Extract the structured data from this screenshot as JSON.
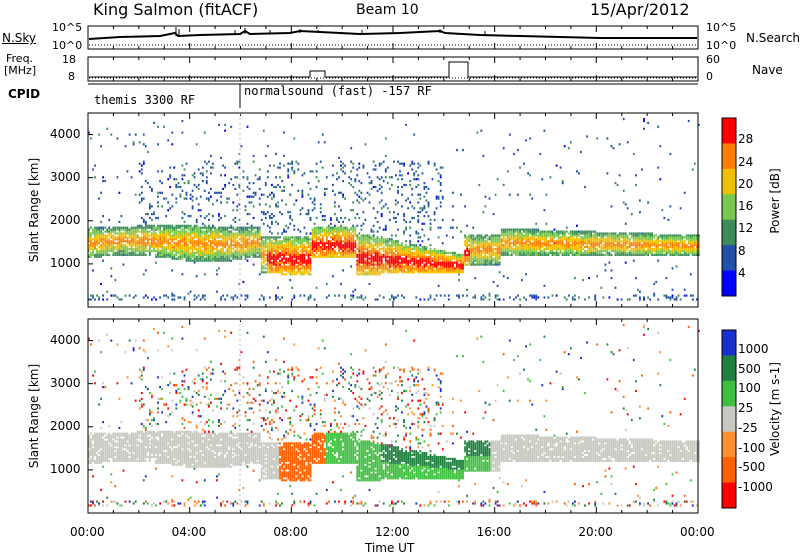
{
  "header": {
    "station": "King Salmon (fitACF)",
    "beam": "Beam 10",
    "date": "15/Apr/2012"
  },
  "noise_panel": {
    "left_label": "N.Sky",
    "right_label": "N.Search",
    "left_ticks": [
      "10^5",
      "10^0"
    ],
    "right_ticks": [
      "10^5",
      "10^0"
    ]
  },
  "freq_panel": {
    "label_line1": "Freq.",
    "label_line2": "[MHz]",
    "left_ticks": [
      "18",
      "8"
    ],
    "right_label": "Nave",
    "right_ticks": [
      "60",
      "0"
    ]
  },
  "cpid_panel": {
    "label": "CPID",
    "programs": [
      "themis 3300 RF",
      "normalsound (fast) -157 RF"
    ]
  },
  "colors": {
    "power": [
      "#0000ff",
      "#2050a8",
      "#3c8c5a",
      "#78c850",
      "#f0c000",
      "#ff8000",
      "#ff0000"
    ],
    "velocity": [
      "#ff0000",
      "#ff6000",
      "#ff9030",
      "#c8c8c0",
      "#40c040",
      "#208040",
      "#1830d0"
    ]
  },
  "chart_data": [
    {
      "type": "heatmap",
      "name": "Power",
      "ylabel": "Slant Range [km]",
      "yticks": [
        "4000",
        "3000",
        "2000",
        "1000"
      ],
      "ylim": [
        0,
        4500
      ],
      "xlim": [
        "00:00",
        "24:00"
      ],
      "colorbar_label": "Power [dB]",
      "colorbar_ticks": [
        "28",
        "24",
        "20",
        "16",
        "12",
        "8",
        "4"
      ]
    },
    {
      "type": "heatmap",
      "name": "Velocity",
      "ylabel": "Slant Range [km]",
      "yticks": [
        "4000",
        "3000",
        "2000",
        "1000"
      ],
      "ylim": [
        0,
        4500
      ],
      "xlabel": "Time UT",
      "xticks": [
        "00:00",
        "04:00",
        "08:00",
        "12:00",
        "16:00",
        "20:00",
        "00:00"
      ],
      "colorbar_label": "Velocity [m s-1]",
      "colorbar_ticks": [
        "1000",
        "500",
        "100",
        "25",
        "-25",
        "-100",
        "-500",
        "-1000"
      ]
    }
  ]
}
